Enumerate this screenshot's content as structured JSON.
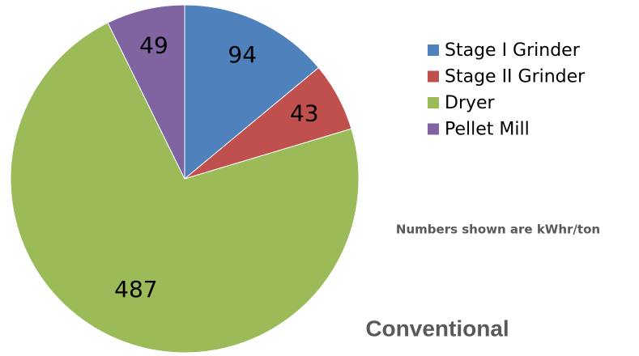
{
  "chart_data": {
    "type": "pie",
    "title": "Conventional",
    "annotation": "Numbers shown are kWhr/ton",
    "categories": [
      "Stage I Grinder",
      "Stage II Grinder",
      "Dryer",
      "Pellet Mill"
    ],
    "values": [
      94,
      43,
      487,
      49
    ],
    "colors": [
      "#4f81bd",
      "#c0504d",
      "#9bbb59",
      "#8064a2"
    ],
    "legend": "right"
  }
}
